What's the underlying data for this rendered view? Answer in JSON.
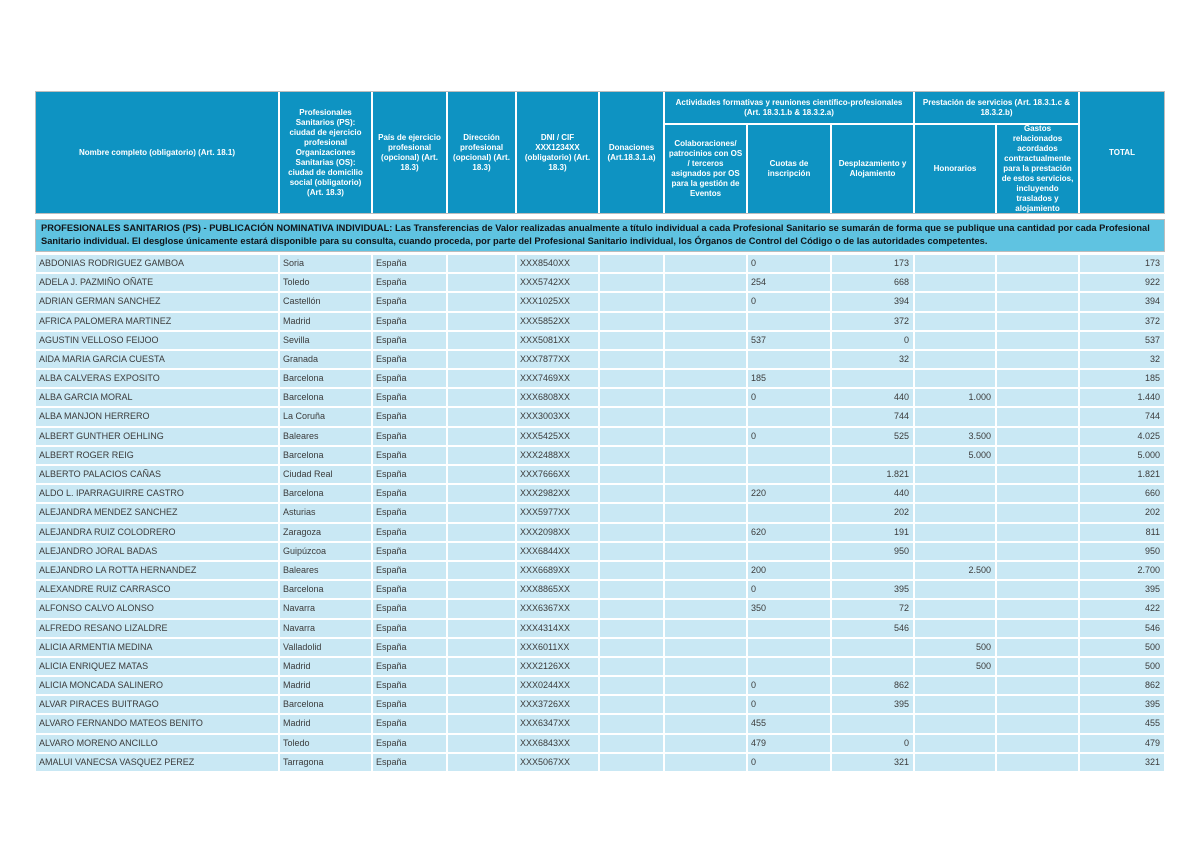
{
  "table": {
    "note": "PROFESIONALES SANITARIOS (PS) - PUBLICACIÓN NOMINATIVA INDIVIDUAL: Las Transferencias de Valor realizadas anualmente a título  individual a cada Profesional Sanitario se sumarán de forma que se publique una cantidad por cada Profesional Sanitario individual.  El desglose únicamente estará disponible para su consulta, cuando proceda, por parte del Profesional Sanitario individual, los Órganos de Control del Código o de las autoridades competentes.",
    "groups": [
      {
        "label": "Actividades formativas y reuniones científico-profesionales (Art. 18.3.1.b & 18.3.2.a)"
      },
      {
        "label": "Prestación de servicios (Art. 18.3.1.c & 18.3.2.b)"
      }
    ],
    "columns": [
      {
        "key": "nombre",
        "label": "Nombre completo (obligatorio) (Art. 18.1)",
        "align": "left"
      },
      {
        "key": "ciudad",
        "label": "Profesionales Sanitarios (PS): ciudad de ejercicio profesional Organizaciones Sanitarias (OS): ciudad de domicilio social (obligatorio) (Art. 18.3)",
        "align": "left"
      },
      {
        "key": "pais",
        "label": "País de ejercicio profesional (opcional) (Art. 18.3)",
        "align": "left"
      },
      {
        "key": "direccion",
        "label": "Dirección profesional (opcional) (Art. 18.3)",
        "align": "left"
      },
      {
        "key": "dni-cif",
        "label": "DNI / CIF XXX1234XX (obligatorio) (Art. 18.3)",
        "align": "left"
      },
      {
        "key": "donaciones",
        "label": "Donaciones (Art.18.3.1.a)",
        "align": "right"
      },
      {
        "key": "colaboraciones",
        "label": "Colaboraciones/ patrocinios con OS / terceros asignados por OS para la gestión de Eventos",
        "align": "right"
      },
      {
        "key": "cuotas-inscripcion",
        "label": "Cuotas de inscripción",
        "align": "left"
      },
      {
        "key": "desplazamiento-alojamiento",
        "label": "Desplazamiento y Alojamiento",
        "align": "right"
      },
      {
        "key": "honorarios",
        "label": "Honorarios",
        "align": "right"
      },
      {
        "key": "gastos-relacionados",
        "label": "Gastos relacionados acordados contractualmente para la prestación de estos servicios, incluyendo traslados y alojamiento",
        "align": "right"
      },
      {
        "key": "total",
        "label": "TOTAL",
        "align": "right"
      }
    ],
    "rows": [
      [
        "ABDONIAS RODRIGUEZ GAMBOA",
        "Soria",
        "España",
        "",
        "XXX8540XX",
        "",
        "",
        "0",
        "173",
        "",
        "",
        "173"
      ],
      [
        "ADELA J. PAZMIÑO OÑATE",
        "Toledo",
        "España",
        "",
        "XXX5742XX",
        "",
        "",
        "254",
        "668",
        "",
        "",
        "922"
      ],
      [
        "ADRIAN GERMAN SANCHEZ",
        "Castellón",
        "España",
        "",
        "XXX1025XX",
        "",
        "",
        "0",
        "394",
        "",
        "",
        "394"
      ],
      [
        "AFRICA PALOMERA MARTINEZ",
        "Madrid",
        "España",
        "",
        "XXX5852XX",
        "",
        "",
        "",
        "372",
        "",
        "",
        "372"
      ],
      [
        "AGUSTIN VELLOSO FEIJOO",
        "Sevilla",
        "España",
        "",
        "XXX5081XX",
        "",
        "",
        "537",
        "0",
        "",
        "",
        "537"
      ],
      [
        "AIDA MARIA GARCIA CUESTA",
        "Granada",
        "España",
        "",
        "XXX7877XX",
        "",
        "",
        "",
        "32",
        "",
        "",
        "32"
      ],
      [
        "ALBA CALVERAS EXPOSITO",
        "Barcelona",
        "España",
        "",
        "XXX7469XX",
        "",
        "",
        "185",
        "",
        "",
        "",
        "185"
      ],
      [
        "ALBA GARCIA MORAL",
        "Barcelona",
        "España",
        "",
        "XXX6808XX",
        "",
        "",
        "0",
        "440",
        "1.000",
        "",
        "1.440"
      ],
      [
        "ALBA MANJON HERRERO",
        "La Coruña",
        "España",
        "",
        "XXX3003XX",
        "",
        "",
        "",
        "744",
        "",
        "",
        "744"
      ],
      [
        "ALBERT GUNTHER OEHLING",
        "Baleares",
        "España",
        "",
        "XXX5425XX",
        "",
        "",
        "0",
        "525",
        "3.500",
        "",
        "4.025"
      ],
      [
        "ALBERT ROGER REIG",
        "Barcelona",
        "España",
        "",
        "XXX2488XX",
        "",
        "",
        "",
        "",
        "5.000",
        "",
        "5.000"
      ],
      [
        "ALBERTO PALACIOS CAÑAS",
        "Ciudad Real",
        "España",
        "",
        "XXX7666XX",
        "",
        "",
        "",
        "1.821",
        "",
        "",
        "1.821"
      ],
      [
        "ALDO L. IPARRAGUIRRE CASTRO",
        "Barcelona",
        "España",
        "",
        "XXX2982XX",
        "",
        "",
        "220",
        "440",
        "",
        "",
        "660"
      ],
      [
        "ALEJANDRA MENDEZ SANCHEZ",
        "Asturias",
        "España",
        "",
        "XXX5977XX",
        "",
        "",
        "",
        "202",
        "",
        "",
        "202"
      ],
      [
        "ALEJANDRA RUIZ COLODRERO",
        "Zaragoza",
        "España",
        "",
        "XXX2098XX",
        "",
        "",
        "620",
        "191",
        "",
        "",
        "811"
      ],
      [
        "ALEJANDRO JORAL BADAS",
        "Guipúzcoa",
        "España",
        "",
        "XXX6844XX",
        "",
        "",
        "",
        "950",
        "",
        "",
        "950"
      ],
      [
        "ALEJANDRO LA ROTTA HERNANDEZ",
        "Baleares",
        "España",
        "",
        "XXX6689XX",
        "",
        "",
        "200",
        "",
        "2.500",
        "",
        "2.700"
      ],
      [
        "ALEXANDRE RUIZ CARRASCO",
        "Barcelona",
        "España",
        "",
        "XXX8865XX",
        "",
        "",
        "0",
        "395",
        "",
        "",
        "395"
      ],
      [
        "ALFONSO CALVO ALONSO",
        "Navarra",
        "España",
        "",
        "XXX6367XX",
        "",
        "",
        "350",
        "72",
        "",
        "",
        "422"
      ],
      [
        "ALFREDO RESANO LIZALDRE",
        "Navarra",
        "España",
        "",
        "XXX4314XX",
        "",
        "",
        "",
        "546",
        "",
        "",
        "546"
      ],
      [
        "ALICIA ARMENTIA MEDINA",
        "Valladolid",
        "España",
        "",
        "XXX6011XX",
        "",
        "",
        "",
        "",
        "500",
        "",
        "500"
      ],
      [
        "ALICIA ENRIQUEZ MATAS",
        "Madrid",
        "España",
        "",
        "XXX2126XX",
        "",
        "",
        "",
        "",
        "500",
        "",
        "500"
      ],
      [
        "ALICIA MONCADA SALINERO",
        "Madrid",
        "España",
        "",
        "XXX0244XX",
        "",
        "",
        "0",
        "862",
        "",
        "",
        "862"
      ],
      [
        "ALVAR PIRACES BUITRAGO",
        "Barcelona",
        "España",
        "",
        "XXX3726XX",
        "",
        "",
        "0",
        "395",
        "",
        "",
        "395"
      ],
      [
        "ALVARO FERNANDO MATEOS BENITO",
        "Madrid",
        "España",
        "",
        "XXX6347XX",
        "",
        "",
        "455",
        "",
        "",
        "",
        "455"
      ],
      [
        "ALVARO MORENO ANCILLO",
        "Toledo",
        "España",
        "",
        "XXX6843XX",
        "",
        "",
        "479",
        "0",
        "",
        "",
        "479"
      ],
      [
        "AMALUI VANECSA VASQUEZ PEREZ",
        "Tarragona",
        "España",
        "",
        "XXX5067XX",
        "",
        "",
        "0",
        "321",
        "",
        "",
        "321"
      ]
    ],
    "colors": {
      "header_bg": "#0e93c2",
      "note_bg": "#5fc3e1",
      "row_bg": "#c9e8f4"
    }
  }
}
